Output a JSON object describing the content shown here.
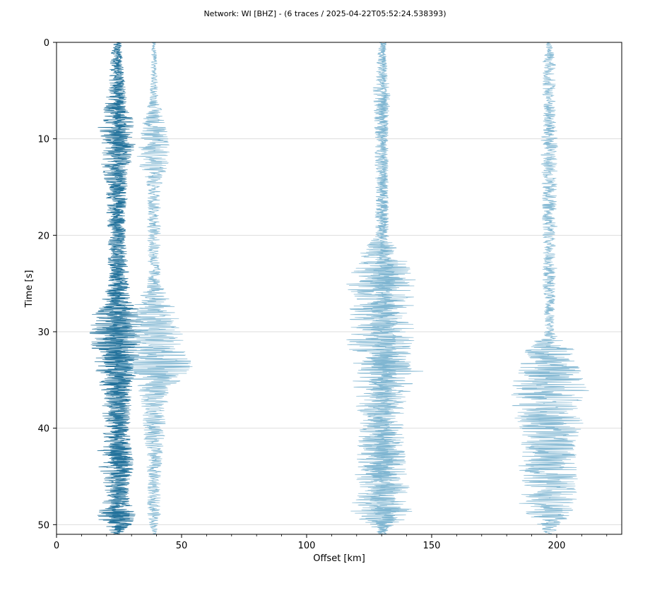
{
  "page": {
    "title": "Network: WI [BHZ] - (6 traces / 2025-04-22T05:52:24.538393)"
  },
  "chart_data": {
    "type": "line",
    "title": "Network: WI [BHZ] - (6 traces / 2025-04-22T05:52:24.538393)",
    "xlabel": "Offset [km]",
    "ylabel": "Time [s]",
    "xlim": [
      0,
      226
    ],
    "ylim": [
      51,
      0
    ],
    "y_inverted": true,
    "grid": "horizontal",
    "legend": "none",
    "x_ticks": [
      0,
      50,
      100,
      150,
      200
    ],
    "y_ticks": [
      0,
      10,
      20,
      30,
      40,
      50
    ],
    "colors": {
      "dark": "#1f6f99",
      "light": "#7ab3cf",
      "grid": "#dddddd"
    },
    "series": [
      {
        "offset": 24,
        "color": "dark",
        "envelope": [
          [
            0,
            2
          ],
          [
            5,
            4
          ],
          [
            7,
            6
          ],
          [
            8,
            8
          ],
          [
            10,
            9
          ],
          [
            15,
            5
          ],
          [
            20,
            4
          ],
          [
            25,
            4
          ],
          [
            27,
            7
          ],
          [
            28,
            12
          ],
          [
            31,
            12
          ],
          [
            33,
            11
          ],
          [
            36,
            7
          ],
          [
            40,
            6
          ],
          [
            44,
            8
          ],
          [
            47,
            5
          ],
          [
            49,
            9
          ],
          [
            50.5,
            6
          ],
          [
            51,
            2
          ]
        ]
      },
      {
        "offset": 25,
        "color": "dark",
        "envelope": [
          [
            0,
            1
          ],
          [
            5,
            3
          ],
          [
            10,
            4
          ],
          [
            20,
            3
          ],
          [
            28,
            6
          ],
          [
            32,
            8
          ],
          [
            40,
            4
          ],
          [
            50,
            5
          ],
          [
            51,
            1
          ]
        ]
      },
      {
        "offset": 39,
        "color": "light",
        "envelope": [
          [
            0,
            1
          ],
          [
            6,
            2
          ],
          [
            8,
            5
          ],
          [
            12,
            8
          ],
          [
            15,
            3
          ],
          [
            20,
            3
          ],
          [
            25,
            3
          ],
          [
            29,
            14
          ],
          [
            32,
            15
          ],
          [
            34,
            18
          ],
          [
            36,
            7
          ],
          [
            40,
            5
          ],
          [
            45,
            3
          ],
          [
            49,
            3
          ],
          [
            51,
            1
          ]
        ]
      },
      {
        "offset": 130,
        "color": "light",
        "envelope": [
          [
            0,
            1
          ],
          [
            5,
            4
          ],
          [
            10,
            3
          ],
          [
            20,
            3
          ],
          [
            22,
            10
          ],
          [
            25,
            16
          ],
          [
            28,
            14
          ],
          [
            30,
            16
          ],
          [
            35,
            14
          ],
          [
            40,
            10
          ],
          [
            45,
            12
          ],
          [
            49,
            16
          ],
          [
            50,
            6
          ],
          [
            51,
            1
          ]
        ]
      },
      {
        "offset": 131,
        "color": "light",
        "envelope": [
          [
            0,
            1
          ],
          [
            10,
            2
          ],
          [
            20,
            2
          ],
          [
            25,
            6
          ],
          [
            32,
            6
          ],
          [
            40,
            5
          ],
          [
            49,
            7
          ],
          [
            51,
            1
          ]
        ]
      },
      {
        "offset": 197,
        "color": "light",
        "envelope": [
          [
            0,
            1
          ],
          [
            2,
            3
          ],
          [
            8,
            3
          ],
          [
            10,
            4
          ],
          [
            20,
            3
          ],
          [
            25,
            3
          ],
          [
            30,
            2
          ],
          [
            32,
            12
          ],
          [
            34,
            14
          ],
          [
            36,
            18
          ],
          [
            40,
            16
          ],
          [
            42,
            12
          ],
          [
            44,
            14
          ],
          [
            46,
            12
          ],
          [
            48,
            14
          ],
          [
            50,
            6
          ],
          [
            51,
            1
          ]
        ]
      }
    ]
  }
}
